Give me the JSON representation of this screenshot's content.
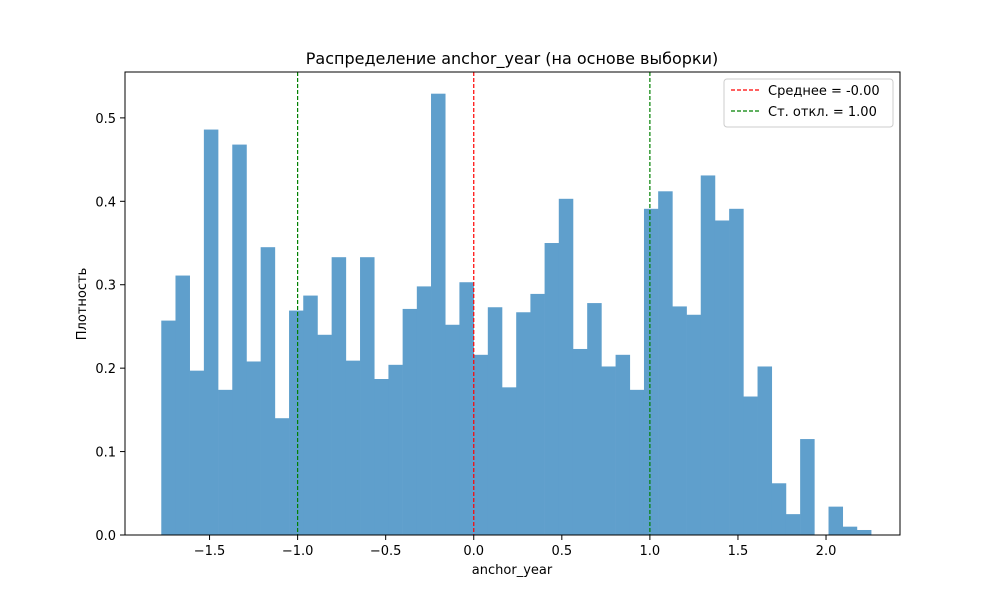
{
  "chart_data": {
    "type": "bar",
    "title": "Распределение anchor_year (на основе выборки)",
    "xlabel": "anchor_year",
    "ylabel": "Плотность",
    "xlim": [
      -1.98,
      2.42
    ],
    "ylim": [
      0,
      0.555
    ],
    "bin_width": 0.0806,
    "x_start": -1.774,
    "values": [
      0.257,
      0.311,
      0.197,
      0.486,
      0.174,
      0.468,
      0.208,
      0.345,
      0.14,
      0.269,
      0.287,
      0.24,
      0.333,
      0.209,
      0.333,
      0.187,
      0.204,
      0.271,
      0.298,
      0.529,
      0.252,
      0.303,
      0.216,
      0.273,
      0.177,
      0.267,
      0.289,
      0.35,
      0.403,
      0.223,
      0.278,
      0.202,
      0.216,
      0.174,
      0.391,
      0.412,
      0.274,
      0.264,
      0.431,
      0.377,
      0.391,
      0.166,
      0.202,
      0.062,
      0.025,
      0.115,
      0.0,
      0.034,
      0.01,
      0.006
    ],
    "bar_color": "#5f9fcc",
    "xticks": [
      -1.5,
      -1.0,
      -0.5,
      0.0,
      0.5,
      1.0,
      1.5,
      2.0
    ],
    "xtick_labels": [
      "−1.5",
      "−1.0",
      "−0.5",
      "0.0",
      "0.5",
      "1.0",
      "1.5",
      "2.0"
    ],
    "yticks": [
      0.0,
      0.1,
      0.2,
      0.3,
      0.4,
      0.5
    ],
    "ytick_labels": [
      "0.0",
      "0.1",
      "0.2",
      "0.3",
      "0.4",
      "0.5"
    ],
    "vlines": [
      {
        "x": 0.0,
        "color": "#ff0000",
        "label": "Среднее = -0.00"
      },
      {
        "x": -1.0,
        "color": "#008000",
        "label": "Ст. откл. = 1.00"
      },
      {
        "x": 1.0,
        "color": "#008000",
        "label": null
      }
    ],
    "legend": {
      "placement": "top-right",
      "entries": [
        {
          "label": "Среднее = -0.00",
          "color": "#ff0000"
        },
        {
          "label": "Ст. откл. = 1.00",
          "color": "#008000"
        }
      ]
    },
    "grid": false
  }
}
